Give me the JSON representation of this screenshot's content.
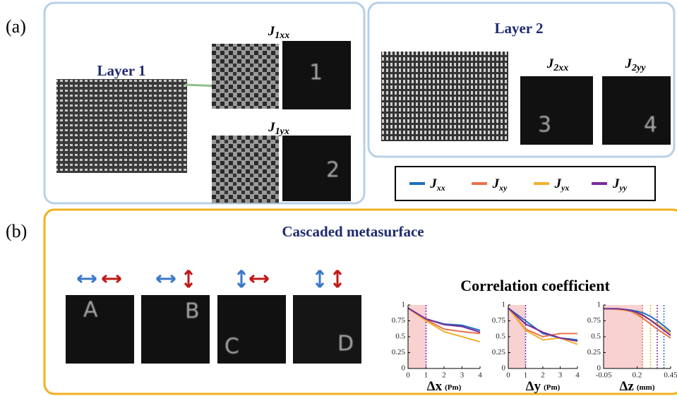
{
  "panel_labels": [
    "(a)",
    "(b)"
  ],
  "layer1": {
    "title": "Layer 1",
    "outputs": [
      {
        "symbol": "J",
        "subscript": "1xx",
        "glyph": "1"
      },
      {
        "symbol": "J",
        "subscript": "1yx",
        "glyph": "2"
      }
    ]
  },
  "layer2": {
    "title": "Layer 2",
    "outputs": [
      {
        "symbol": "J",
        "subscript": "2xx",
        "glyph": "3"
      },
      {
        "symbol": "J",
        "subscript": "2yy",
        "glyph": "4"
      }
    ]
  },
  "legend": [
    {
      "symbol": "J",
      "subscript": "xx",
      "color": "#1f6fc0"
    },
    {
      "symbol": "J",
      "subscript": "xy",
      "color": "#e8734a"
    },
    {
      "symbol": "J",
      "subscript": "yx",
      "color": "#f2b12c"
    },
    {
      "symbol": "J",
      "subscript": "yy",
      "color": "#7b2a9a"
    }
  ],
  "cascaded": {
    "title": "Cascaded metasurface",
    "glyphs": [
      "A",
      "B",
      "C",
      "D"
    ],
    "charts_title": "Correlation  coefficient"
  },
  "chart_data": [
    {
      "type": "line",
      "x": [
        0,
        1,
        2,
        3,
        4
      ],
      "xlim": [
        0,
        4
      ],
      "xticks": [
        0,
        1,
        2,
        3,
        4
      ],
      "ylim": [
        0,
        1
      ],
      "yticks": [
        0,
        0.25,
        0.5,
        0.75,
        1
      ],
      "x_label": {
        "symbol": "Δx",
        "unit": "(Pm)"
      },
      "shaded": [
        0,
        1
      ],
      "shade_color": "#f6c6c6",
      "markers": [
        {
          "x": 1,
          "color": "#6a2bd0"
        }
      ],
      "series": [
        {
          "color": "#1f6fc0",
          "values": [
            0.95,
            0.78,
            0.7,
            0.68,
            0.6
          ]
        },
        {
          "color": "#e8734a",
          "values": [
            0.95,
            0.77,
            0.62,
            0.58,
            0.55
          ]
        },
        {
          "color": "#f2b12c",
          "values": [
            0.95,
            0.75,
            0.58,
            0.5,
            0.42
          ]
        },
        {
          "color": "#7b2a9a",
          "values": [
            0.95,
            0.78,
            0.69,
            0.66,
            0.57
          ]
        }
      ]
    },
    {
      "type": "line",
      "x": [
        0,
        1,
        2,
        3,
        4
      ],
      "xlim": [
        0,
        4
      ],
      "xticks": [
        0,
        1,
        2,
        3,
        4
      ],
      "ylim": [
        0,
        1
      ],
      "yticks": [
        0,
        0.25,
        0.5,
        0.75,
        1
      ],
      "x_label": {
        "symbol": "Δy",
        "unit": "(Pm)"
      },
      "shaded": [
        0,
        1
      ],
      "shade_color": "#f6c6c6",
      "markers": [
        {
          "x": 1,
          "color": "#6a2bd0"
        }
      ],
      "series": [
        {
          "color": "#1f6fc0",
          "values": [
            0.95,
            0.75,
            0.55,
            0.48,
            0.45
          ]
        },
        {
          "color": "#e8734a",
          "values": [
            0.95,
            0.62,
            0.5,
            0.55,
            0.55
          ]
        },
        {
          "color": "#f2b12c",
          "values": [
            0.95,
            0.6,
            0.45,
            0.48,
            0.38
          ]
        },
        {
          "color": "#7b2a9a",
          "values": [
            0.95,
            0.7,
            0.57,
            0.48,
            0.43
          ]
        }
      ]
    },
    {
      "type": "line",
      "x": [
        -0.05,
        0,
        0.05,
        0.1,
        0.15,
        0.2,
        0.25,
        0.3,
        0.35,
        0.4,
        0.45
      ],
      "xlim": [
        -0.05,
        0.45
      ],
      "xticks": [
        -0.05,
        0.2,
        0.45
      ],
      "ylim": [
        0,
        1
      ],
      "yticks": [
        0,
        0.25,
        0.5,
        0.75,
        1
      ],
      "x_label": {
        "symbol": "Δz",
        "unit": "(mm)"
      },
      "shaded": [
        -0.05,
        0.24
      ],
      "shade_color": "#f6c6c6",
      "markers": [
        {
          "x": 0.24,
          "color": "#e8734a"
        },
        {
          "x": 0.3,
          "color": "#f2b12c"
        },
        {
          "x": 0.35,
          "color": "#7b2a9a"
        },
        {
          "x": 0.4,
          "color": "#1f6fc0"
        }
      ],
      "series": [
        {
          "color": "#1f6fc0",
          "values": [
            0.94,
            0.94,
            0.94,
            0.93,
            0.92,
            0.9,
            0.87,
            0.82,
            0.75,
            0.67,
            0.58
          ]
        },
        {
          "color": "#e8734a",
          "values": [
            0.94,
            0.94,
            0.93,
            0.92,
            0.9,
            0.85,
            0.78,
            0.7,
            0.62,
            0.55,
            0.48
          ]
        },
        {
          "color": "#f2b12c",
          "values": [
            0.94,
            0.94,
            0.93,
            0.92,
            0.9,
            0.87,
            0.82,
            0.76,
            0.7,
            0.63,
            0.55
          ]
        },
        {
          "color": "#7b2a9a",
          "values": [
            0.94,
            0.94,
            0.94,
            0.93,
            0.91,
            0.88,
            0.83,
            0.76,
            0.68,
            0.6,
            0.52
          ]
        }
      ]
    }
  ]
}
